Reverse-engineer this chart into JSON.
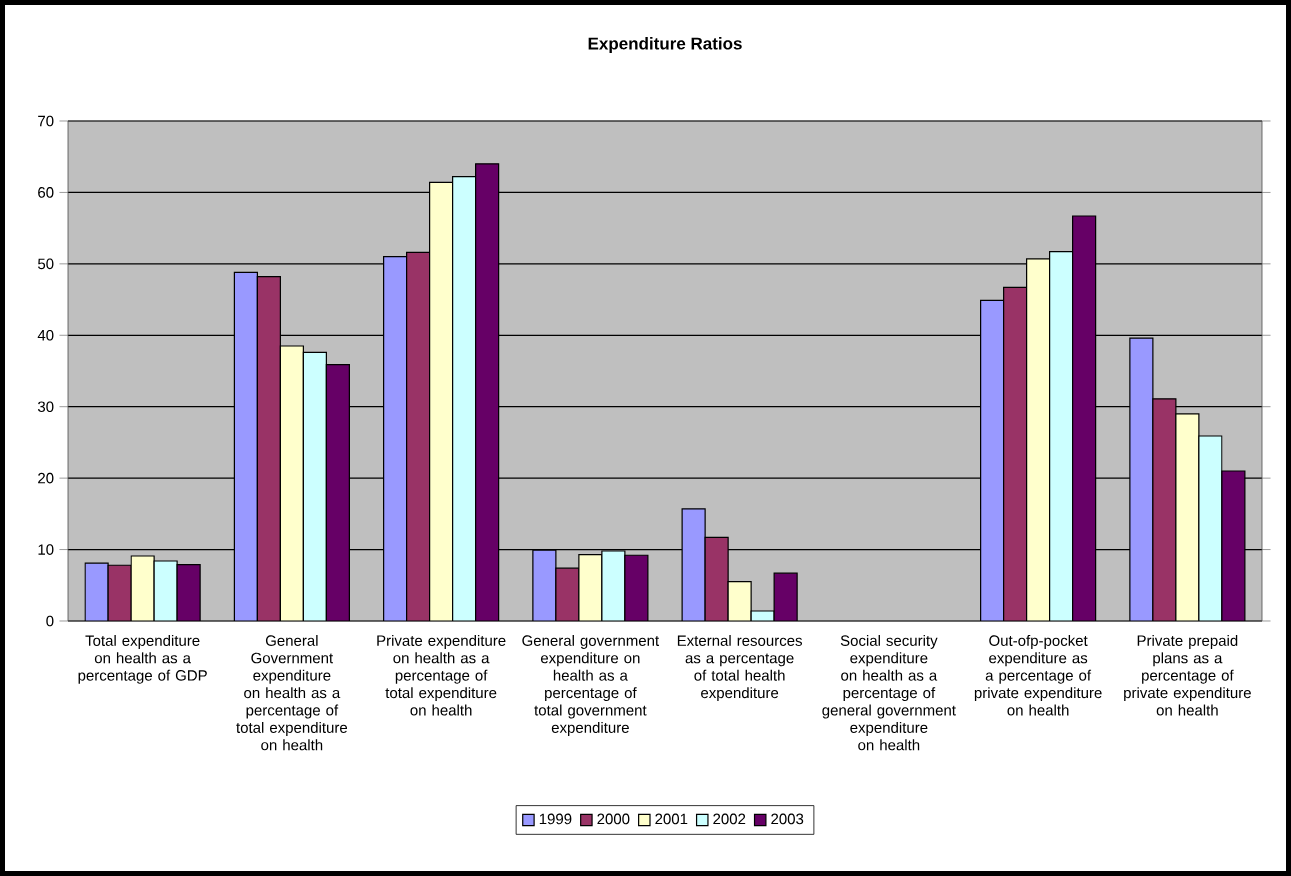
{
  "chart_data": {
    "type": "bar",
    "title": "Expenditure Ratios",
    "categories": [
      "Total expenditure on health as a percentage of GDP",
      "General Government expenditure on health as a percentage of total expenditure on health",
      "Private expenditure on health as a percentage of total expenditure on health",
      "General government expenditure on health as a percentage of total government expenditure",
      "External resources as a percentage of total health expenditure",
      "Social security expenditure on health as a percentage of general government expenditure on health",
      "Out-ofp-pocket expenditure as a percentage of private expenditure on health",
      "Private prepaid plans as a percentage of private expenditure on health"
    ],
    "series": [
      {
        "name": "1999",
        "color": "#9999ff",
        "values": [
          8.1,
          48.8,
          51.0,
          9.9,
          15.7,
          null,
          44.9,
          39.6
        ]
      },
      {
        "name": "2000",
        "color": "#993366",
        "values": [
          7.8,
          48.2,
          51.6,
          7.4,
          11.7,
          null,
          46.7,
          31.1
        ]
      },
      {
        "name": "2001",
        "color": "#ffffcc",
        "values": [
          9.1,
          38.5,
          61.4,
          9.3,
          5.5,
          null,
          50.7,
          29.0
        ]
      },
      {
        "name": "2002",
        "color": "#ccffff",
        "values": [
          8.4,
          37.6,
          62.2,
          9.8,
          1.4,
          null,
          51.7,
          25.9
        ]
      },
      {
        "name": "2003",
        "color": "#660066",
        "values": [
          7.9,
          35.9,
          64.0,
          9.2,
          6.7,
          null,
          56.7,
          21.0
        ]
      }
    ],
    "ylim": [
      0,
      70
    ],
    "yticks": [
      0,
      10,
      20,
      30,
      40,
      50,
      60,
      70
    ],
    "grid": "y",
    "legend": "bottom"
  }
}
